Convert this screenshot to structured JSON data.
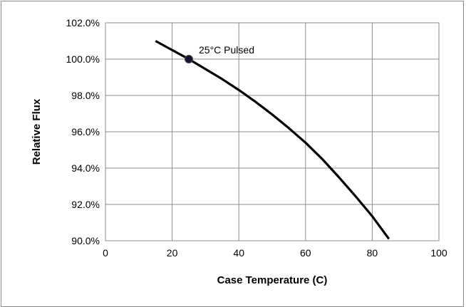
{
  "chart_data": {
    "type": "line",
    "title": "",
    "xlabel": "Case Temperature (C)",
    "ylabel": "Relative Flux",
    "xlim": [
      0,
      100
    ],
    "ylim": [
      90.0,
      102.0
    ],
    "x_ticks": [
      0,
      20,
      40,
      60,
      80,
      100
    ],
    "y_ticks": [
      90.0,
      92.0,
      94.0,
      96.0,
      98.0,
      100.0,
      102.0
    ],
    "x_tick_labels": [
      "0",
      "20",
      "40",
      "60",
      "80",
      "100"
    ],
    "y_tick_labels": [
      "90.0%",
      "92.0%",
      "94.0%",
      "96.0%",
      "98.0%",
      "100.0%",
      "102.0%"
    ],
    "grid": true,
    "legend": "none",
    "series": [
      {
        "x": [
          15,
          20,
          25,
          30,
          35,
          40,
          45,
          50,
          55,
          60,
          65,
          70,
          75,
          80,
          85
        ],
        "y": [
          101.0,
          100.5,
          100.0,
          99.45,
          98.9,
          98.3,
          97.65,
          96.95,
          96.2,
          95.4,
          94.5,
          93.5,
          92.45,
          91.35,
          90.1
        ],
        "color": "#000000"
      }
    ],
    "markers": [
      {
        "x": 25,
        "y": 100.0,
        "label": "25°C Pulsed",
        "color": "#1a1030"
      }
    ]
  }
}
